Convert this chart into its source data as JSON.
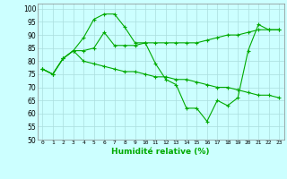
{
  "xlabel": "Humidité relative (%)",
  "background_color": "#ccffff",
  "grid_color": "#aadddd",
  "line_color": "#00aa00",
  "ylim": [
    50,
    102
  ],
  "xlim": [
    -0.5,
    23.5
  ],
  "yticks": [
    50,
    55,
    60,
    65,
    70,
    75,
    80,
    85,
    90,
    95,
    100
  ],
  "xticks": [
    0,
    1,
    2,
    3,
    4,
    5,
    6,
    7,
    8,
    9,
    10,
    11,
    12,
    13,
    14,
    15,
    16,
    17,
    18,
    19,
    20,
    21,
    22,
    23
  ],
  "series": [
    {
      "x": [
        0,
        1,
        2,
        3,
        4,
        5,
        6,
        7,
        8,
        9,
        10,
        11,
        12,
        13,
        14,
        15,
        16,
        17,
        18,
        19,
        20,
        21,
        22,
        23
      ],
      "y": [
        77,
        75,
        81,
        84,
        89,
        96,
        98,
        98,
        93,
        87,
        87,
        79,
        73,
        71,
        62,
        62,
        57,
        65,
        63,
        66,
        84,
        94,
        92,
        92
      ]
    },
    {
      "x": [
        0,
        1,
        2,
        3,
        4,
        5,
        6,
        7,
        8,
        9,
        10,
        11,
        12,
        13,
        14,
        15,
        16,
        17,
        18,
        19,
        20,
        21,
        22,
        23
      ],
      "y": [
        77,
        75,
        81,
        84,
        84,
        85,
        91,
        86,
        86,
        86,
        87,
        87,
        87,
        87,
        87,
        87,
        88,
        89,
        90,
        90,
        91,
        92,
        92,
        92
      ]
    },
    {
      "x": [
        0,
        1,
        2,
        3,
        4,
        5,
        6,
        7,
        8,
        9,
        10,
        11,
        12,
        13,
        14,
        15,
        16,
        17,
        18,
        19,
        20,
        21,
        22,
        23
      ],
      "y": [
        77,
        75,
        81,
        84,
        80,
        79,
        78,
        77,
        76,
        76,
        75,
        74,
        74,
        73,
        73,
        72,
        71,
        70,
        70,
        69,
        68,
        67,
        67,
        66
      ]
    }
  ]
}
